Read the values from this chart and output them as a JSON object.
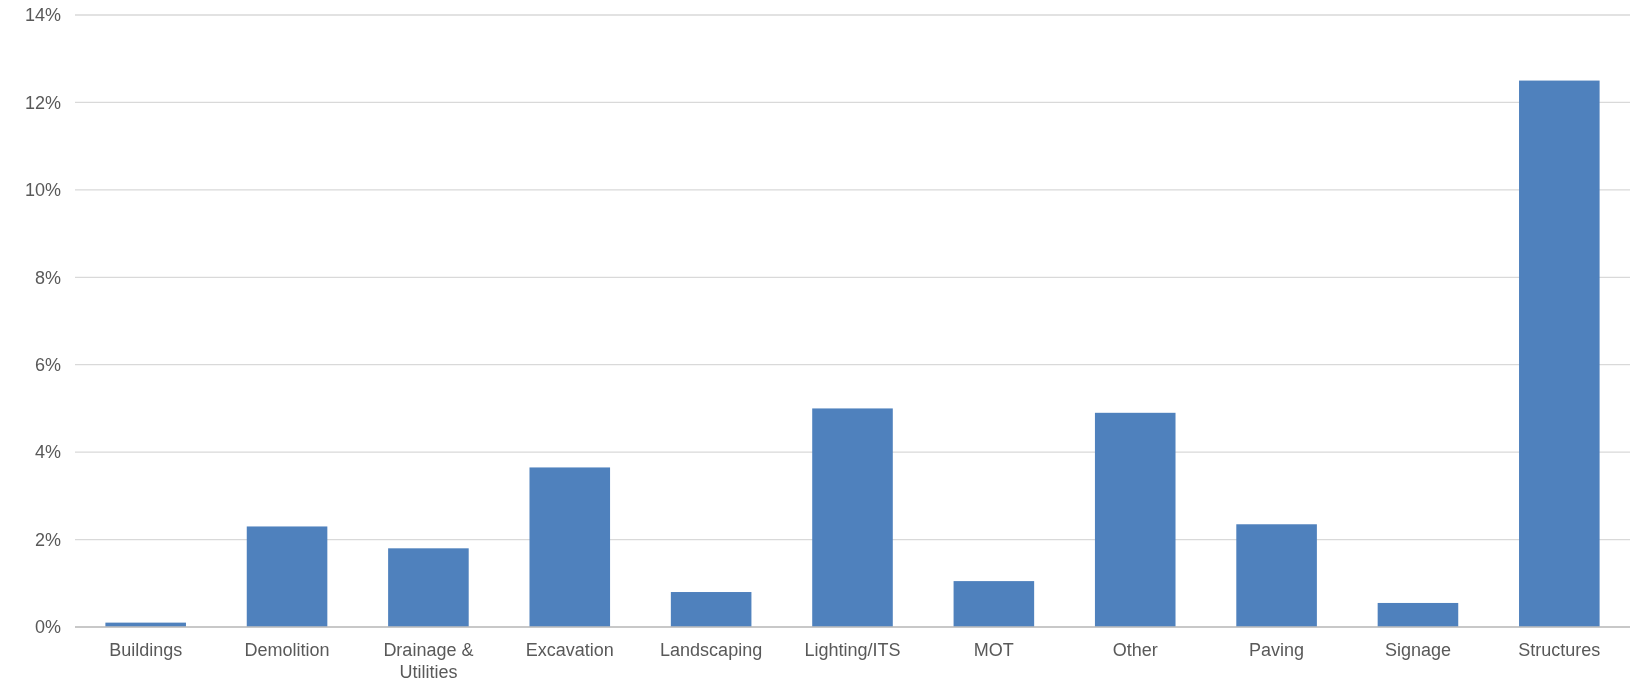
{
  "chart_data": {
    "type": "bar",
    "categories": [
      "Buildings",
      "Demolition",
      "Drainage & Utilities",
      "Excavation",
      "Landscaping",
      "Lighting/ITS",
      "MOT",
      "Other",
      "Paving",
      "Signage",
      "Structures"
    ],
    "values": [
      0.1,
      2.3,
      1.8,
      3.65,
      0.8,
      5.0,
      1.05,
      4.9,
      2.35,
      0.55,
      12.5
    ],
    "color": "#4f81bd",
    "ylim": [
      0,
      14
    ],
    "yticks": [
      {
        "value": 0,
        "label": "0%"
      },
      {
        "value": 2,
        "label": "2%"
      },
      {
        "value": 4,
        "label": "4%"
      },
      {
        "value": 6,
        "label": "6%"
      },
      {
        "value": 8,
        "label": "8%"
      },
      {
        "value": 10,
        "label": "10%"
      },
      {
        "value": 12,
        "label": "12%"
      },
      {
        "value": 14,
        "label": "14%"
      }
    ],
    "grid": "y"
  }
}
